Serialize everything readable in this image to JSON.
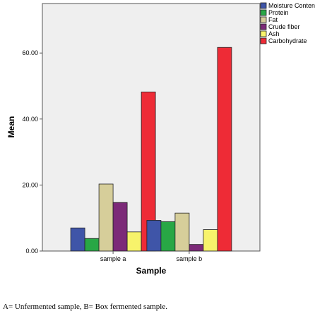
{
  "chart_data": {
    "type": "bar",
    "title": "",
    "xlabel": "Sample",
    "ylabel": "Mean",
    "categories": [
      "sample a",
      "sample b"
    ],
    "ylim": [
      0,
      75
    ],
    "yticks": [
      "0.00",
      "20.00",
      "40.00",
      "60.00"
    ],
    "ytick_values": [
      0,
      20,
      40,
      60
    ],
    "grid": false,
    "legend_position": "top-right",
    "series": [
      {
        "name": "Moisture Content",
        "color": "#3F55A8",
        "values": [
          7.0,
          9.3
        ]
      },
      {
        "name": "Protein",
        "color": "#28A745",
        "values": [
          3.8,
          8.9
        ]
      },
      {
        "name": "Fat",
        "color": "#D6CE9A",
        "values": [
          20.3,
          11.5
        ]
      },
      {
        "name": "Crude fiber",
        "color": "#7C2A78",
        "values": [
          14.7,
          2.0
        ]
      },
      {
        "name": "Ash",
        "color": "#F7F36B",
        "values": [
          5.8,
          6.5
        ]
      },
      {
        "name": "Carbohydrate",
        "color": "#EE2B36",
        "values": [
          48.2,
          61.7
        ]
      }
    ]
  },
  "caption": "A= Unfermented sample, B= Box fermented sample."
}
